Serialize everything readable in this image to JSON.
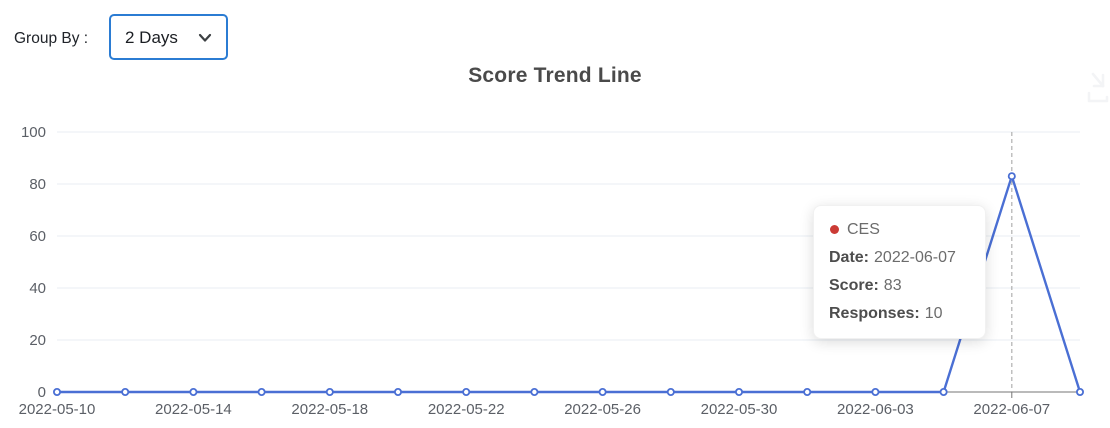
{
  "title": "Score Trend Line",
  "controls": {
    "group_by_label": "Group By :",
    "group_by_value": "2 Days"
  },
  "icons": {
    "select_chevron": "chevron-down",
    "top_right": "download"
  },
  "tooltip": {
    "series": "CES",
    "dot_color": "#cb3b35",
    "rows": [
      {
        "label": "Date:",
        "value": "2022-06-07"
      },
      {
        "label": "Score:",
        "value": "83"
      },
      {
        "label": "Responses:",
        "value": "10"
      }
    ]
  },
  "chart_data": {
    "type": "line",
    "title": "Score Trend Line",
    "categories": [
      "2022-05-10",
      "2022-05-12",
      "2022-05-14",
      "2022-05-16",
      "2022-05-18",
      "2022-05-20",
      "2022-05-22",
      "2022-05-24",
      "2022-05-26",
      "2022-05-28",
      "2022-05-30",
      "2022-06-01",
      "2022-06-03",
      "2022-06-05",
      "2022-06-07",
      "2022-06-09"
    ],
    "series": [
      {
        "name": "CES",
        "color": "#4a6fd4",
        "values": [
          0,
          0,
          0,
          0,
          0,
          0,
          0,
          0,
          0,
          0,
          0,
          0,
          0,
          0,
          83,
          0
        ]
      }
    ],
    "x_tick_labels": [
      "2022-05-10",
      "2022-05-14",
      "2022-05-18",
      "2022-05-22",
      "2022-05-26",
      "2022-05-30",
      "2022-06-03",
      "2022-06-07"
    ],
    "y_ticks": [
      0,
      20,
      40,
      60,
      80,
      100
    ],
    "ylim": [
      0,
      100
    ],
    "crosshair_x": "2022-06-07",
    "grid": true,
    "legend": "none",
    "colors": {
      "grid": "#e8edf3",
      "axis": "#757575",
      "crosshair": "#b0b0b0"
    }
  }
}
